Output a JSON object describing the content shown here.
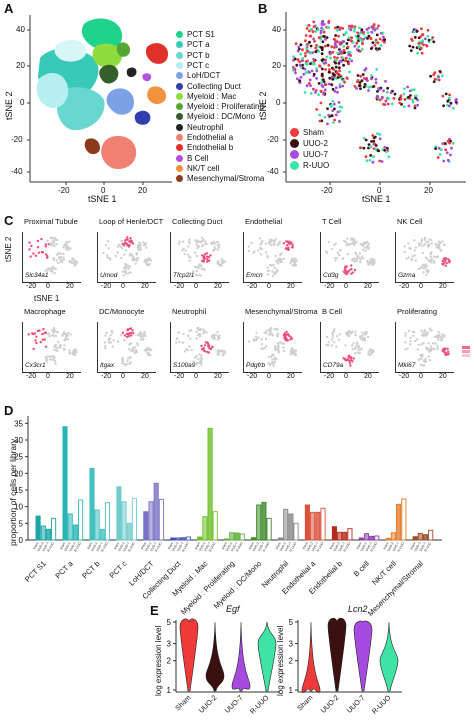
{
  "panels": {
    "A": "A",
    "B": "B",
    "C": "C",
    "D": "D",
    "E": "E"
  },
  "panel_a": {
    "xlabel": "tSNE 1",
    "ylabel": "tSNE 2",
    "xticks": [
      "-20",
      "0",
      "20"
    ],
    "yticks": [
      "40",
      "20",
      "0",
      "-20",
      "-40"
    ],
    "legend": [
      {
        "label": "PCT S1",
        "color": "#1fd38a"
      },
      {
        "label": "PCT a",
        "color": "#39c9b8"
      },
      {
        "label": "PCT b",
        "color": "#68d7cf"
      },
      {
        "label": "PCT c",
        "color": "#b7eef0"
      },
      {
        "label": "LoH/DCT",
        "color": "#7da1e6"
      },
      {
        "label": "Collecting Duct",
        "color": "#2f3fb0"
      },
      {
        "label": "Myeloid : Mac",
        "color": "#8fdc3e"
      },
      {
        "label": "Myeloid : Proliferating",
        "color": "#52a832"
      },
      {
        "label": "Myeloid : DC/Mono",
        "color": "#355e2b"
      },
      {
        "label": "Neutrophil",
        "color": "#222222"
      },
      {
        "label": "Endothelial a",
        "color": "#f08071"
      },
      {
        "label": "Endothelial b",
        "color": "#e0302a"
      },
      {
        "label": "B Cell",
        "color": "#b54fe0"
      },
      {
        "label": "NK/T cell",
        "color": "#f2923e"
      },
      {
        "label": "Mesenchymal/Stroma",
        "color": "#8b3a1c"
      }
    ]
  },
  "panel_b": {
    "xlabel": "tSNE 1",
    "ylabel": "tSNE 2",
    "xticks": [
      "-20",
      "0",
      "20"
    ],
    "yticks": [
      "40",
      "20",
      "0",
      "-20",
      "-40"
    ],
    "legend": [
      {
        "label": "Sham",
        "color": "#f03a3a"
      },
      {
        "label": "UUO-2",
        "color": "#3b1010"
      },
      {
        "label": "UUO-7",
        "color": "#a64ae0"
      },
      {
        "label": "R-UUO",
        "color": "#3fe3a4"
      }
    ]
  },
  "panel_c": {
    "ylabel": "tSNE 2",
    "xlabel": "tSNE 1",
    "xticks": [
      "-20",
      "0",
      "20"
    ],
    "tiles": [
      {
        "title": "Proximal Tubule",
        "gene": "Slc34a1"
      },
      {
        "title": "Loop of Henle/DCT",
        "gene": "Umod"
      },
      {
        "title": "Collecting Duct",
        "gene": "Tfcp2l1"
      },
      {
        "title": "Endothelial",
        "gene": "Emcn"
      },
      {
        "title": "T Cell",
        "gene": "Cd3g"
      },
      {
        "title": "NK Cell",
        "gene": "Gzma"
      },
      {
        "title": "Macrophage",
        "gene": "Cx3cr1"
      },
      {
        "title": "DC/Monocyte",
        "gene": "Itgax"
      },
      {
        "title": "Neutrophil",
        "gene": "S100a9"
      },
      {
        "title": "Mesenchymal/Stroma",
        "gene": "Pdgfrb"
      },
      {
        "title": "B Cell",
        "gene": "CD79a"
      },
      {
        "title": "Proliferating",
        "gene": "Mki67"
      }
    ]
  },
  "chart_data": [
    {
      "type": "bar",
      "panel": "D",
      "ylabel": "proportion of cells per library",
      "ylim": [
        0,
        36
      ],
      "yticks": [
        0,
        5,
        10,
        15,
        20,
        25,
        30,
        35
      ],
      "conditions": [
        "sham",
        "UUO-2",
        "UUO-7",
        "R-UUO"
      ],
      "categories": [
        "PCT S1",
        "PCT a",
        "PCT b",
        "PCT c",
        "LoH/DCT",
        "Collecting Duct",
        "Myeloid : Mac",
        "Myeloid : Proliferating",
        "Myeloid : DC/Mono",
        "Neutrophil",
        "Endothelial a",
        "Endothelial b",
        "B cell",
        "NK/T cell",
        "Mesenchymal/Stromal"
      ],
      "colors": [
        "#1aa6a6",
        "#2ab5b5",
        "#44c0c0",
        "#70cccc",
        "#7b72c4",
        "#3e4fb8",
        "#6fbf2b",
        "#5aae35",
        "#3e8a2a",
        "#888888",
        "#d9523a",
        "#b52a1e",
        "#8a3aa8",
        "#e37c2c",
        "#9a4a2a"
      ],
      "values": [
        [
          7.2,
          4.2,
          3.2,
          6.5
        ],
        [
          34.0,
          7.8,
          4.5,
          12.0
        ],
        [
          21.5,
          9.0,
          3.2,
          11.2
        ],
        [
          16.0,
          11.5,
          5.0,
          12.5
        ],
        [
          8.5,
          11.5,
          17.0,
          12.2
        ],
        [
          0.6,
          0.6,
          0.7,
          0.9
        ],
        [
          0.9,
          7.0,
          33.5,
          8.5
        ],
        [
          0.3,
          2.2,
          2.1,
          1.8
        ],
        [
          0.7,
          10.5,
          11.3,
          6.5
        ],
        [
          0.6,
          9.2,
          7.8,
          5.0
        ],
        [
          10.5,
          8.3,
          8.3,
          9.5
        ],
        [
          4.0,
          2.3,
          2.3,
          3.4
        ],
        [
          0.6,
          1.9,
          1.1,
          1.2
        ],
        [
          0.5,
          2.2,
          10.7,
          12.3
        ],
        [
          1.0,
          2.0,
          1.6,
          2.9
        ]
      ]
    },
    {
      "type": "violin",
      "panel": "E",
      "title": "Egf",
      "ylabel": "log expression level",
      "yticks": [
        "5",
        "3",
        "2",
        "1"
      ],
      "categories": [
        "Sham",
        "UUO-2",
        "UUO-7",
        "R-UUO"
      ],
      "colors": [
        "#f03a3a",
        "#3b1010",
        "#a64ae0",
        "#3fe3a4"
      ],
      "median_level": [
        4.5,
        1.4,
        1.1,
        3.0
      ]
    },
    {
      "type": "violin",
      "panel": "E",
      "title": "Lcn2",
      "ylabel": "log expression level",
      "yticks": [
        "5",
        "3",
        "2",
        "1"
      ],
      "categories": [
        "Sham",
        "UUO-2",
        "UUO-7",
        "R-UUO"
      ],
      "colors": [
        "#f03a3a",
        "#3b1010",
        "#a64ae0",
        "#3fe3a4"
      ],
      "median_level": [
        1.0,
        4.6,
        4.2,
        2.0
      ]
    }
  ]
}
